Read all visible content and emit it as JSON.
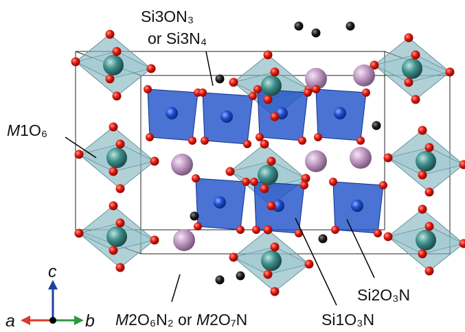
{
  "labels": {
    "si3": {
      "line1": "Si3ON₃",
      "line2": "or Si3N₄"
    },
    "m1": {
      "parts": [
        "M",
        "1O₆"
      ]
    },
    "m2": {
      "parts": [
        "M",
        "2O₆N₂ or ",
        "M",
        "2O₇N"
      ]
    },
    "si1": "Si1O₃N",
    "si2": "Si2O₃N"
  },
  "axes": {
    "a": "a",
    "b": "b",
    "c": "c"
  }
}
